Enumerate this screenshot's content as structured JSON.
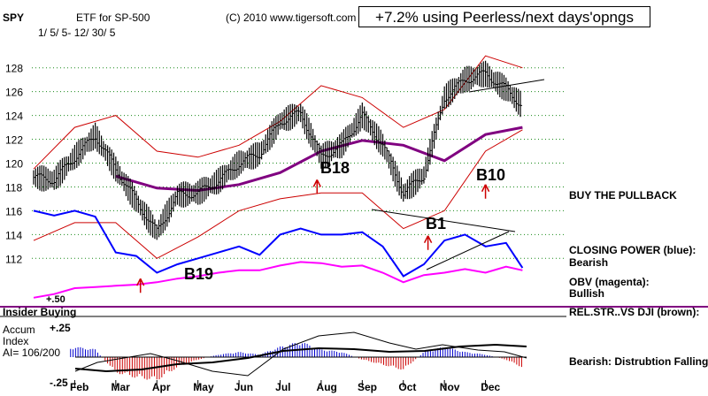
{
  "header": {
    "symbol": "SPY",
    "title": "ETF for SP-500",
    "date_range": "1/ 5/ 5- 12/ 30/ 5",
    "copyright": "(C) 2010 www.tigersoft.com",
    "result_box": "+7.2% using Peerless/next days'opngs"
  },
  "right_notes": {
    "buy_note": "BUY THE PULLBACK",
    "closing_power_label": "CLOSING POWER (blue):",
    "closing_power_value": "Bearish",
    "obv_label": "OBV (magenta):",
    "obv_value": "Bullish",
    "relstr_label": "REL.STR..VS DJI (brown):",
    "bottom_note": "Bearish: Distrubtion Falling."
  },
  "insider_label": "Insider Buying",
  "accum": {
    "label_line1": "Accum",
    "label_line2": "Index",
    "label_line3": "AI= 106/200",
    "tick_top": "+.25",
    "tick_bottom": "-.25",
    "upper_level_label": "+.50"
  },
  "signals": [
    {
      "label": "B19",
      "month_index": 2.6,
      "price": 110.3
    },
    {
      "label": "B18",
      "month_index": 6.9,
      "price": 118.6
    },
    {
      "label": "B1",
      "month_index": 9.6,
      "price": 113.9
    },
    {
      "label": "B10",
      "month_index": 11.0,
      "price": 118.2
    }
  ],
  "colors": {
    "price_bars": "#000000",
    "bands": "#cc0000",
    "moving_average": "#800080",
    "closing_power": "#0000ff",
    "obv": "#ff00ff",
    "accum_positive": "#0000cc",
    "accum_negative": "#cc0000",
    "gridline": "#1a8a1a"
  },
  "chart_data": {
    "type": "line",
    "title": "ETF for SP-500",
    "x_tick_labels": [
      "Feb",
      "Mar",
      "Apr",
      "May",
      "Jun",
      "Jul",
      "Aug",
      "Sep",
      "Oct",
      "Nov",
      "Dec"
    ],
    "y_tick_labels": [
      "128",
      "126",
      "124",
      "122",
      "120",
      "118",
      "116",
      "114",
      "112"
    ],
    "ylim": [
      109.5,
      130.5
    ],
    "grid": true,
    "series": [
      {
        "key": "price_close",
        "month_index": [
          0,
          0.5,
          1,
          1.5,
          2,
          2.5,
          3,
          3.5,
          4,
          4.5,
          5,
          5.5,
          6,
          6.5,
          7,
          7.5,
          8,
          8.5,
          9,
          9.5,
          10,
          10.5,
          11,
          11.5,
          11.9
        ],
        "values": [
          118.8,
          118.6,
          120.5,
          122.3,
          119.5,
          116.8,
          114.2,
          117.3,
          117.5,
          118.5,
          120.0,
          120.8,
          123.5,
          124.2,
          120.5,
          121.5,
          124.0,
          121.5,
          117.5,
          119.0,
          125.5,
          127.0,
          127.5,
          126.2,
          124.8
        ]
      },
      {
        "key": "moving_average",
        "month_index": [
          0,
          1,
          2,
          3,
          4,
          5,
          6,
          7,
          8,
          9,
          10,
          11,
          11.9
        ],
        "values": [
          null,
          null,
          118.9,
          117.9,
          117.7,
          118.2,
          119.2,
          121.0,
          121.9,
          121.5,
          120.2,
          122.4,
          123.0
        ]
      },
      {
        "key": "upper_band",
        "month_index": [
          0,
          1,
          2,
          3,
          4,
          5,
          6,
          7,
          8,
          9,
          10,
          11,
          11.9
        ],
        "values": [
          119.5,
          123.0,
          124.0,
          121.0,
          120.5,
          121.5,
          123.5,
          126.5,
          125.5,
          123.0,
          124.5,
          129.0,
          128.0
        ]
      },
      {
        "key": "lower_band",
        "month_index": [
          0,
          1,
          2,
          3,
          4,
          5,
          6,
          7,
          8,
          9,
          10,
          11,
          11.9
        ],
        "values": [
          113.5,
          115.0,
          115.0,
          112.0,
          113.8,
          116.0,
          117.0,
          117.5,
          117.5,
          114.5,
          116.0,
          121.0,
          122.8
        ]
      },
      {
        "key": "closing_power",
        "month_index": [
          0,
          0.5,
          1,
          1.5,
          2,
          2.5,
          3,
          3.5,
          4,
          4.5,
          5,
          5.5,
          6,
          6.5,
          7,
          7.5,
          8,
          8.5,
          9,
          9.5,
          10,
          10.5,
          11,
          11.5,
          11.9
        ],
        "values": [
          116.0,
          115.6,
          116.0,
          115.5,
          112.5,
          112.2,
          110.8,
          111.5,
          112.0,
          112.5,
          113.0,
          112.3,
          114.0,
          114.5,
          114.0,
          114.0,
          114.2,
          113.0,
          110.5,
          111.5,
          113.5,
          114.0,
          113.0,
          113.3,
          111.2
        ]
      },
      {
        "key": "obv",
        "month_index": [
          0,
          0.5,
          1,
          1.5,
          2,
          2.5,
          3,
          3.5,
          4,
          4.5,
          5,
          5.5,
          6,
          6.5,
          7,
          7.5,
          8,
          8.5,
          9,
          9.5,
          10,
          10.5,
          11,
          11.5,
          11.9
        ],
        "values": [
          108.7,
          109.0,
          109.5,
          109.6,
          109.7,
          109.8,
          110.0,
          110.3,
          110.5,
          110.8,
          111.0,
          111.0,
          111.4,
          111.7,
          111.6,
          111.3,
          111.4,
          110.8,
          110.0,
          110.6,
          110.8,
          111.1,
          110.8,
          111.3,
          111.0
        ]
      }
    ],
    "accumulation_index": {
      "month_index": [
        0,
        0.5,
        1,
        1.5,
        2,
        2.5,
        3,
        3.5,
        4,
        4.5,
        5,
        5.5,
        6,
        6.5,
        7,
        7.5,
        8,
        8.5,
        9,
        9.5,
        10,
        10.5,
        11,
        11.5,
        11.9
      ],
      "values": [
        -0.02,
        0.05,
        0.2,
        0.15,
        -0.3,
        -0.4,
        -0.45,
        -0.2,
        -0.05,
        0.05,
        0.1,
        0.05,
        0.2,
        0.3,
        0.15,
        0.1,
        -0.05,
        -0.15,
        -0.25,
        0.1,
        0.2,
        0.1,
        0.05,
        -0.05,
        -0.2
      ]
    }
  }
}
